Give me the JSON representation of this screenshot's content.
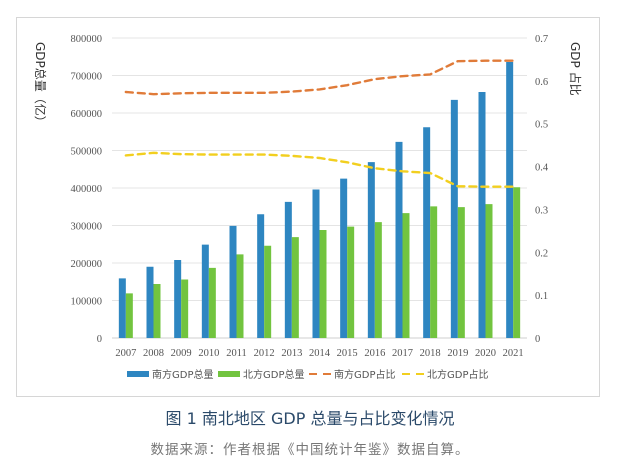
{
  "chart_data": {
    "type": "bar",
    "categories": [
      "2007",
      "2008",
      "2009",
      "2010",
      "2011",
      "2012",
      "2013",
      "2014",
      "2015",
      "2016",
      "2017",
      "2018",
      "2019",
      "2020",
      "2021"
    ],
    "series": [
      {
        "name": "南方GDP总量",
        "kind": "bar",
        "axis": "left",
        "color": "#2e86c1",
        "values": [
          159000,
          190000,
          208000,
          249000,
          299000,
          330000,
          363000,
          396000,
          425000,
          469000,
          523000,
          562000,
          635000,
          656000,
          736000
        ]
      },
      {
        "name": "北方GDP总量",
        "kind": "bar",
        "axis": "left",
        "color": "#72c43f",
        "values": [
          119000,
          144000,
          156000,
          187000,
          223000,
          246000,
          269000,
          288000,
          297000,
          309000,
          333000,
          351000,
          349000,
          357000,
          402000
        ]
      },
      {
        "name": "南方GDP占比",
        "kind": "line",
        "dashed": true,
        "axis": "right",
        "color": "#e07b39",
        "values": [
          0.574,
          0.569,
          0.571,
          0.572,
          0.572,
          0.572,
          0.575,
          0.58,
          0.59,
          0.604,
          0.611,
          0.615,
          0.646,
          0.647,
          0.647
        ]
      },
      {
        "name": "北方GDP占比",
        "kind": "line",
        "dashed": true,
        "axis": "right",
        "color": "#f2cf1f",
        "values": [
          0.426,
          0.432,
          0.429,
          0.428,
          0.428,
          0.428,
          0.425,
          0.42,
          0.41,
          0.396,
          0.389,
          0.385,
          0.354,
          0.353,
          0.353
        ]
      }
    ],
    "ylabel": "GDP总量（亿）",
    "y2label": "GDP 占比",
    "xlabel": "",
    "ylim": [
      0,
      800000
    ],
    "y2lim": [
      0,
      0.7
    ],
    "yticks": [
      "0",
      "100000",
      "200000",
      "300000",
      "400000",
      "500000",
      "600000",
      "700000",
      "800000"
    ],
    "y2ticks": [
      "0",
      "0.1",
      "0.2",
      "0.3",
      "0.4",
      "0.5",
      "0.6",
      "0.7"
    ],
    "grid": true,
    "legend_position": "bottom"
  },
  "caption": {
    "title": "图 1  南北地区 GDP 总量与占比变化情况",
    "source": "数据来源：作者根据《中国统计年鉴》数据自算。"
  }
}
